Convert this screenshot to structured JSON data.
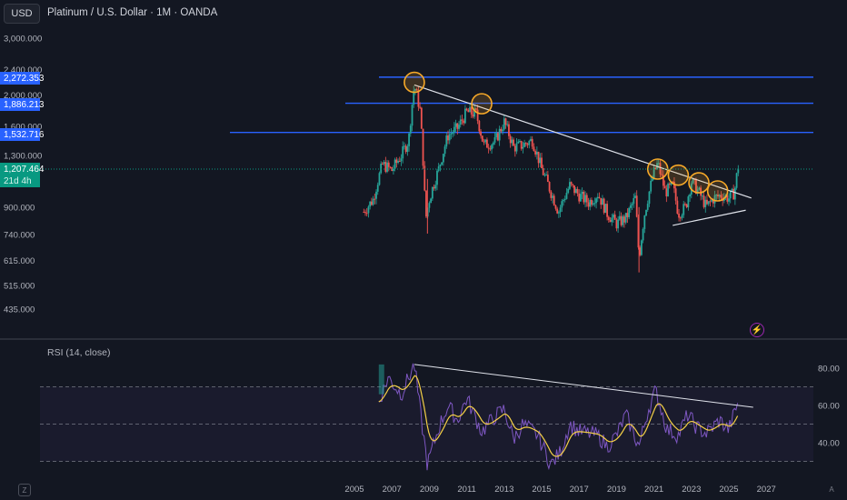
{
  "header": {
    "currency_button": "USD",
    "title": "Platinum / U.S. Dollar · 1M · OANDA"
  },
  "price_axis": {
    "ticks": [
      "3,000.000",
      "2,400.000",
      "2,000.000",
      "1,600.000",
      "1,300.000",
      "900.000",
      "740.000",
      "615.000",
      "515.000",
      "435.000"
    ],
    "tags": {
      "line_top": "2,272.353",
      "line_mid": "1,886.213",
      "line_low": "1,532.716",
      "last_price": "1,207.464",
      "countdown": "21d 4h"
    }
  },
  "rsi_panel": {
    "label": "RSI (14, close)",
    "levels": [
      "80.00",
      "60.00",
      "40.00"
    ]
  },
  "time_axis": {
    "labels": [
      "2005",
      "2007",
      "2009",
      "2011",
      "2013",
      "2015",
      "2017",
      "2019",
      "2021",
      "2023",
      "2025",
      "2027"
    ]
  },
  "footer": {
    "timezone_button": "Z",
    "auto_button": "A"
  },
  "colors": {
    "background": "#131722",
    "up_candle": "#26a69a",
    "down_candle": "#ef5350",
    "horizontal_lines": "#2962ff",
    "trendline": "#e0e3eb",
    "circles": "#f7a928",
    "rsi_line": "#7e57c2",
    "rsi_ma": "#f5d047"
  },
  "chart_data": {
    "type": "candlestick",
    "symbol": "Platinum / U.S. Dollar",
    "interval": "1M",
    "source": "OANDA",
    "last_price": 1207.464,
    "horizontal_levels": [
      2272.353,
      1886.213,
      1532.716
    ],
    "monthly_closes": [
      {
        "year": 2005.5,
        "close": 870
      },
      {
        "year": 2006.0,
        "close": 950
      },
      {
        "year": 2006.5,
        "close": 1220
      },
      {
        "year": 2007.0,
        "close": 1170
      },
      {
        "year": 2007.5,
        "close": 1300
      },
      {
        "year": 2007.9,
        "close": 1450
      },
      {
        "year": 2008.2,
        "close": 2150
      },
      {
        "year": 2008.5,
        "close": 1800
      },
      {
        "year": 2008.8,
        "close": 820
      },
      {
        "year": 2009.0,
        "close": 950
      },
      {
        "year": 2009.5,
        "close": 1180
      },
      {
        "year": 2010.0,
        "close": 1500
      },
      {
        "year": 2010.5,
        "close": 1580
      },
      {
        "year": 2011.0,
        "close": 1770
      },
      {
        "year": 2011.5,
        "close": 1750
      },
      {
        "year": 2011.9,
        "close": 1400
      },
      {
        "year": 2012.5,
        "close": 1430
      },
      {
        "year": 2013.0,
        "close": 1650
      },
      {
        "year": 2013.5,
        "close": 1380
      },
      {
        "year": 2014.0,
        "close": 1400
      },
      {
        "year": 2014.5,
        "close": 1450
      },
      {
        "year": 2015.0,
        "close": 1180
      },
      {
        "year": 2015.5,
        "close": 1000
      },
      {
        "year": 2015.9,
        "close": 870
      },
      {
        "year": 2016.5,
        "close": 1050
      },
      {
        "year": 2017.0,
        "close": 980
      },
      {
        "year": 2017.5,
        "close": 930
      },
      {
        "year": 2018.0,
        "close": 990
      },
      {
        "year": 2018.5,
        "close": 860
      },
      {
        "year": 2019.0,
        "close": 800
      },
      {
        "year": 2019.5,
        "close": 830
      },
      {
        "year": 2020.0,
        "close": 960
      },
      {
        "year": 2020.2,
        "close": 620
      },
      {
        "year": 2020.5,
        "close": 860
      },
      {
        "year": 2021.0,
        "close": 1150
      },
      {
        "year": 2021.2,
        "close": 1230
      },
      {
        "year": 2021.6,
        "close": 1000
      },
      {
        "year": 2022.0,
        "close": 1050
      },
      {
        "year": 2022.3,
        "close": 860
      },
      {
        "year": 2022.7,
        "close": 900
      },
      {
        "year": 2023.0,
        "close": 1080
      },
      {
        "year": 2023.4,
        "close": 1000
      },
      {
        "year": 2023.8,
        "close": 900
      },
      {
        "year": 2024.2,
        "close": 960
      },
      {
        "year": 2024.6,
        "close": 980
      },
      {
        "year": 2025.0,
        "close": 960
      },
      {
        "year": 2025.3,
        "close": 1000
      },
      {
        "year": 2025.5,
        "close": 1207
      }
    ],
    "resistance_trendline": [
      {
        "year": 2008.2,
        "price": 2150
      },
      {
        "year": 2026.2,
        "price": 960
      }
    ],
    "support_trendline": [
      {
        "year": 2022.0,
        "price": 790
      },
      {
        "year": 2025.9,
        "price": 880
      }
    ],
    "touch_circles": [
      {
        "year": 2008.2,
        "price": 2190
      },
      {
        "year": 2011.8,
        "price": 1880
      },
      {
        "year": 2021.2,
        "price": 1180
      },
      {
        "year": 2022.3,
        "price": 1130
      },
      {
        "year": 2023.4,
        "price": 1070
      },
      {
        "year": 2024.4,
        "price": 1010
      }
    ],
    "rsi": {
      "period": 14,
      "overbought": 70,
      "oversold": 30,
      "values": [
        {
          "year": 2006.3,
          "v": 62
        },
        {
          "year": 2006.8,
          "v": 75
        },
        {
          "year": 2007.5,
          "v": 66
        },
        {
          "year": 2008.2,
          "v": 82
        },
        {
          "year": 2008.5,
          "v": 58
        },
        {
          "year": 2008.9,
          "v": 28
        },
        {
          "year": 2009.5,
          "v": 48
        },
        {
          "year": 2010.0,
          "v": 60
        },
        {
          "year": 2010.5,
          "v": 52
        },
        {
          "year": 2011.0,
          "v": 64
        },
        {
          "year": 2011.8,
          "v": 46
        },
        {
          "year": 2012.5,
          "v": 54
        },
        {
          "year": 2013.0,
          "v": 58
        },
        {
          "year": 2013.5,
          "v": 42
        },
        {
          "year": 2014.0,
          "v": 50
        },
        {
          "year": 2014.8,
          "v": 44
        },
        {
          "year": 2015.5,
          "v": 28
        },
        {
          "year": 2016.0,
          "v": 35
        },
        {
          "year": 2016.5,
          "v": 50
        },
        {
          "year": 2017.0,
          "v": 46
        },
        {
          "year": 2018.0,
          "v": 44
        },
        {
          "year": 2018.5,
          "v": 38
        },
        {
          "year": 2019.0,
          "v": 44
        },
        {
          "year": 2019.5,
          "v": 55
        },
        {
          "year": 2020.2,
          "v": 38
        },
        {
          "year": 2020.7,
          "v": 58
        },
        {
          "year": 2021.1,
          "v": 68
        },
        {
          "year": 2021.7,
          "v": 47
        },
        {
          "year": 2022.3,
          "v": 44
        },
        {
          "year": 2022.8,
          "v": 55
        },
        {
          "year": 2023.3,
          "v": 48
        },
        {
          "year": 2023.8,
          "v": 45
        },
        {
          "year": 2024.5,
          "v": 52
        },
        {
          "year": 2025.0,
          "v": 47
        },
        {
          "year": 2025.5,
          "v": 62
        }
      ],
      "trendline": [
        {
          "year": 2008.2,
          "v": 82
        },
        {
          "year": 2026.3,
          "v": 59
        }
      ]
    }
  }
}
